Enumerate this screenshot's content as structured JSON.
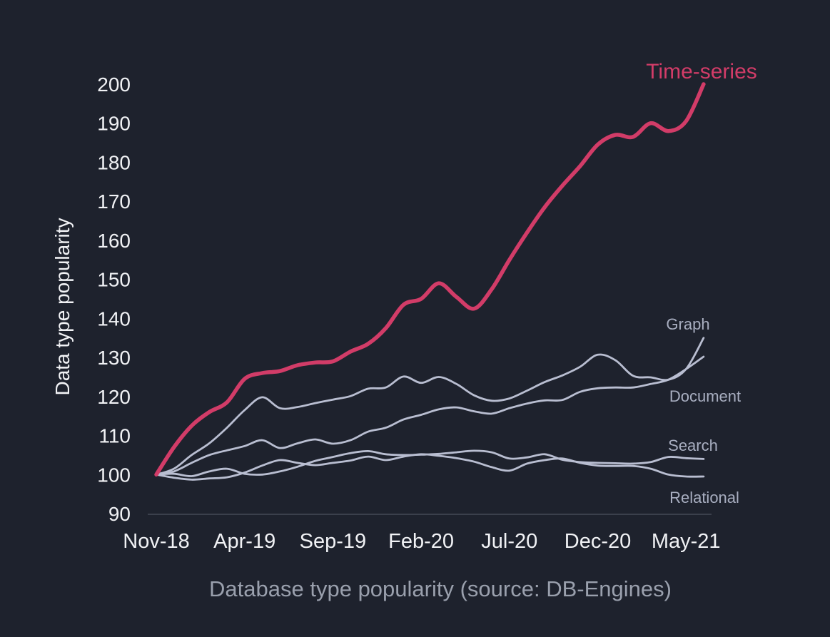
{
  "colors": {
    "background": "#1e222d",
    "accent_pink": "#d23c68",
    "line_gray": "#b9bed1",
    "label_gray": "#a8aec0",
    "tick_white": "#f1f2f5",
    "axis_line": "#3b404c",
    "title_gray": "#9aa0ad"
  },
  "chart_data": {
    "type": "line",
    "title": "Database type popularity (source: DB-Engines)",
    "ylabel": "Data type popularity",
    "xlabel": "",
    "ylim": [
      90,
      200
    ],
    "grid": false,
    "legend_position": "inline-end-labels",
    "y_ticks": [
      200,
      190,
      180,
      170,
      160,
      150,
      140,
      130,
      120,
      110,
      100,
      90
    ],
    "x": [
      "Nov-18",
      "Dec-18",
      "Jan-19",
      "Feb-19",
      "Mar-19",
      "Apr-19",
      "May-19",
      "Jun-19",
      "Jul-19",
      "Aug-19",
      "Sep-19",
      "Oct-19",
      "Nov-19",
      "Dec-19",
      "Jan-20",
      "Feb-20",
      "Mar-20",
      "Apr-20",
      "May-20",
      "Jun-20",
      "Jul-20",
      "Aug-20",
      "Sep-20",
      "Oct-20",
      "Nov-20",
      "Dec-20",
      "Jan-21",
      "Feb-21",
      "Mar-21",
      "Apr-21",
      "May-21",
      "Jun-21"
    ],
    "x_tick_indices": [
      0,
      5,
      10,
      15,
      20,
      25,
      30
    ],
    "x_tick_labels": [
      "Nov-18",
      "Apr-19",
      "Sep-19",
      "Feb-20",
      "Jul-20",
      "Dec-20",
      "May-21"
    ],
    "series": [
      {
        "name": "time-series",
        "label": "Time-series",
        "color": "#d23c68",
        "values": [
          100,
          107,
          112.5,
          116,
          118.5,
          124.5,
          126,
          126.5,
          128,
          128.7,
          129,
          131.5,
          133.5,
          137.5,
          143.5,
          145,
          149,
          145.5,
          142.5,
          147.5,
          155,
          162,
          168.5,
          174,
          179,
          184.5,
          187,
          186.5,
          190,
          188,
          190.5,
          200
        ]
      },
      {
        "name": "graph",
        "label": "Graph",
        "color": "#b9bed1",
        "values": [
          100,
          101.5,
          105,
          108,
          112,
          116.5,
          119.8,
          117,
          117.3,
          118.3,
          119.2,
          120.1,
          122,
          122.3,
          125.1,
          123.5,
          125,
          123.2,
          120.3,
          118.9,
          119.5,
          121.5,
          123.7,
          125.4,
          127.6,
          130.7,
          129.3,
          125.3,
          124.9,
          124.3,
          127,
          135
        ]
      },
      {
        "name": "document",
        "label": "Document",
        "color": "#b9bed1",
        "values": [
          100,
          100.8,
          103,
          105,
          106.2,
          107.3,
          108.8,
          106.8,
          108,
          109,
          107.9,
          108.8,
          111,
          112,
          114.1,
          115.3,
          116.7,
          117.2,
          116.2,
          115.6,
          117,
          118.2,
          119,
          119.1,
          121.2,
          122.1,
          122.3,
          122.3,
          123.2,
          124.3,
          127,
          130.2
        ]
      },
      {
        "name": "search",
        "label": "Search",
        "color": "#b9bed1",
        "values": [
          100,
          100.2,
          99.6,
          100.8,
          101.5,
          100.2,
          100,
          100.8,
          102,
          103.5,
          104.5,
          105.5,
          106,
          105.2,
          105,
          105.1,
          105.3,
          105.7,
          106.1,
          105.7,
          104.1,
          104.4,
          105.2,
          103.8,
          103.2,
          103,
          102.9,
          102.8,
          103.2,
          104.5,
          104.2,
          104
        ]
      },
      {
        "name": "relational",
        "label": "Relational",
        "color": "#b9bed1",
        "values": [
          100,
          99.2,
          98.7,
          99,
          99.3,
          100.5,
          102.3,
          103.7,
          103,
          102.4,
          103,
          103.6,
          104.6,
          103.7,
          104.6,
          105.2,
          104.8,
          104.2,
          103.3,
          101.9,
          101,
          102.8,
          103.7,
          104.1,
          103,
          102.3,
          102.2,
          102.2,
          101.5,
          100,
          99.5,
          99.5
        ]
      }
    ]
  }
}
